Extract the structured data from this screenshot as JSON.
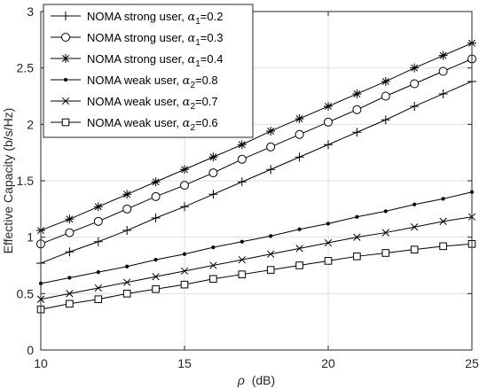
{
  "chart_data": {
    "type": "line",
    "title": "",
    "xlabel_symbol": "ρ",
    "xlabel_unit": "(dB)",
    "ylabel": "Effective Capacity (b/s/Hz)",
    "xlim": [
      10,
      25
    ],
    "ylim": [
      0,
      3
    ],
    "xticks": [
      10,
      15,
      20,
      25
    ],
    "yticks": [
      0,
      0.5,
      1,
      1.5,
      2,
      2.5,
      3
    ],
    "grid": true,
    "legend_position": "top-left",
    "x": [
      10,
      11,
      12,
      13,
      14,
      15,
      16,
      17,
      18,
      19,
      20,
      21,
      22,
      23,
      24,
      25
    ],
    "series": [
      {
        "name_text": "NOMA strong user, ",
        "name_symbol": "α",
        "name_sub": "1",
        "name_value": "=0.2",
        "marker": "plus",
        "values": [
          0.77,
          0.87,
          0.96,
          1.06,
          1.17,
          1.27,
          1.38,
          1.49,
          1.6,
          1.71,
          1.82,
          1.93,
          2.04,
          2.16,
          2.27,
          2.38
        ]
      },
      {
        "name_text": "NOMA strong user, ",
        "name_symbol": "α",
        "name_sub": "1",
        "name_value": "=0.3",
        "marker": "circle",
        "values": [
          0.94,
          1.04,
          1.14,
          1.25,
          1.36,
          1.46,
          1.57,
          1.69,
          1.8,
          1.91,
          2.02,
          2.13,
          2.25,
          2.36,
          2.47,
          2.58
        ]
      },
      {
        "name_text": "NOMA strong user, ",
        "name_symbol": "α",
        "name_sub": "1",
        "name_value": "=0.4",
        "marker": "asterisk",
        "values": [
          1.06,
          1.16,
          1.27,
          1.38,
          1.49,
          1.6,
          1.71,
          1.82,
          1.94,
          2.05,
          2.16,
          2.27,
          2.38,
          2.5,
          2.61,
          2.72
        ]
      },
      {
        "name_text": "NOMA weak user, ",
        "name_symbol": "α",
        "name_sub": "2",
        "name_value": "=0.8",
        "marker": "dot",
        "values": [
          0.59,
          0.64,
          0.69,
          0.74,
          0.8,
          0.85,
          0.91,
          0.96,
          1.01,
          1.07,
          1.12,
          1.18,
          1.23,
          1.29,
          1.34,
          1.4
        ]
      },
      {
        "name_text": "NOMA weak user, ",
        "name_symbol": "α",
        "name_sub": "2",
        "name_value": "=0.7",
        "marker": "cross",
        "values": [
          0.45,
          0.5,
          0.55,
          0.6,
          0.65,
          0.7,
          0.75,
          0.8,
          0.85,
          0.9,
          0.95,
          1.0,
          1.04,
          1.09,
          1.14,
          1.18
        ]
      },
      {
        "name_text": "NOMA weak user, ",
        "name_symbol": "α",
        "name_sub": "2",
        "name_value": "=0.6",
        "marker": "square",
        "values": [
          0.36,
          0.41,
          0.45,
          0.5,
          0.54,
          0.58,
          0.63,
          0.67,
          0.71,
          0.75,
          0.79,
          0.83,
          0.86,
          0.89,
          0.92,
          0.94
        ]
      }
    ]
  }
}
